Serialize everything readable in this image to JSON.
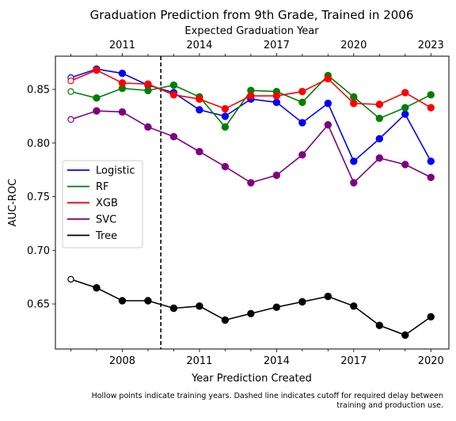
{
  "chart_data": {
    "type": "line",
    "title": "Graduation Prediction from 9th Grade, Trained in 2006",
    "top_axis_label": "Expected Graduation Year",
    "xlabel": "Year Prediction Created",
    "ylabel": "AUC-ROC",
    "x": [
      2006,
      2007,
      2008,
      2009,
      2010,
      2011,
      2012,
      2013,
      2014,
      2015,
      2016,
      2017,
      2018,
      2019,
      2020
    ],
    "x_ticks": [
      2008,
      2011,
      2014,
      2017,
      2020
    ],
    "top_ticks": [
      2011,
      2014,
      2017,
      2020,
      2023
    ],
    "top_axis_offset": 3,
    "y_ticks": [
      0.65,
      0.7,
      0.75,
      0.8,
      0.85
    ],
    "xlim": [
      2005.4,
      2020.7
    ],
    "ylim": [
      0.608,
      0.881
    ],
    "cutoff_x": 2009.5,
    "training_years": [
      2006
    ],
    "series": [
      {
        "name": "Logistic",
        "color": "#0000ff",
        "values": [
          0.861,
          0.869,
          0.865,
          0.854,
          0.847,
          0.831,
          0.825,
          0.841,
          0.838,
          0.819,
          0.837,
          0.783,
          0.804,
          0.827,
          0.783
        ]
      },
      {
        "name": "RF",
        "color": "#008000",
        "values": [
          0.848,
          0.842,
          0.851,
          0.849,
          0.854,
          0.843,
          0.815,
          0.849,
          0.848,
          0.838,
          0.863,
          0.843,
          0.823,
          0.833,
          0.845
        ]
      },
      {
        "name": "XGB",
        "color": "#ff0000",
        "values": [
          0.858,
          0.868,
          0.856,
          0.855,
          0.845,
          0.841,
          0.832,
          0.844,
          0.844,
          0.848,
          0.86,
          0.837,
          0.836,
          0.847,
          0.833
        ]
      },
      {
        "name": "SVC",
        "color": "#800080",
        "values": [
          0.822,
          0.83,
          0.829,
          0.815,
          0.806,
          0.792,
          0.778,
          0.763,
          0.77,
          0.789,
          0.817,
          0.763,
          0.786,
          0.78,
          0.768
        ]
      },
      {
        "name": "Tree",
        "color": "#000000",
        "values": [
          0.673,
          0.665,
          0.653,
          0.653,
          0.646,
          0.648,
          0.635,
          0.641,
          0.647,
          0.652,
          0.657,
          0.648,
          0.63,
          0.621,
          0.638
        ]
      }
    ],
    "legend_location": "center-left",
    "footnote": "Hollow points indicate training years. Dashed line indicates cutoff for required delay between training and production use."
  }
}
